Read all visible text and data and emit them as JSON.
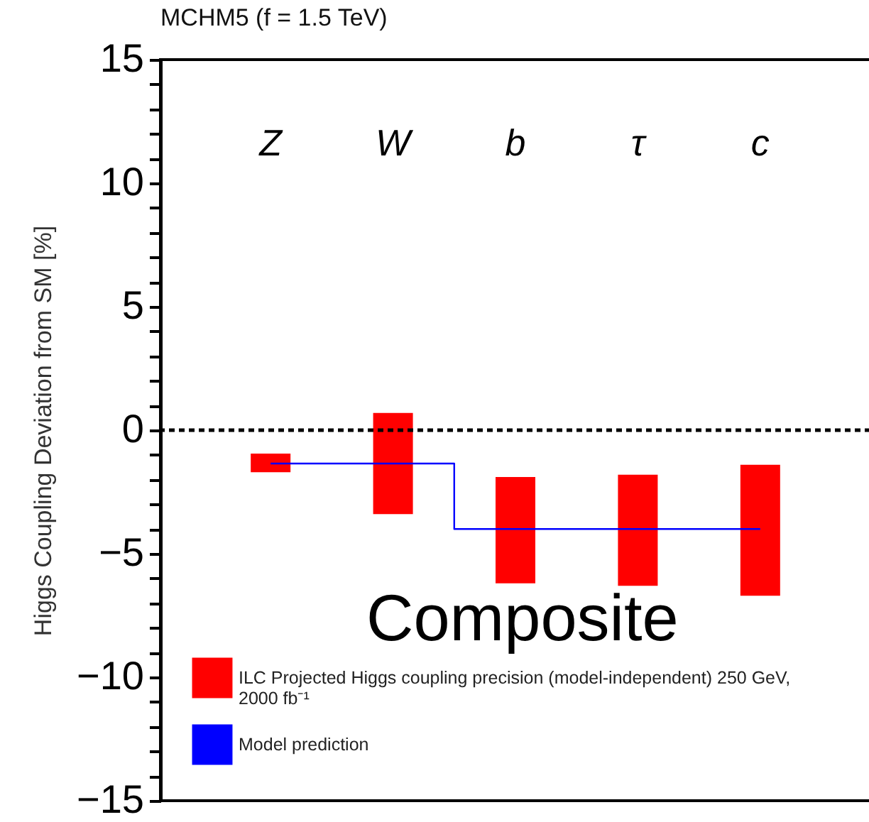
{
  "chart_data": {
    "type": "bar",
    "title": "MCHM5 (f = 1.5 TeV)",
    "ylabel": "Higgs Coupling Deviation from SM [%]",
    "categories": [
      "Z",
      "W",
      "b",
      "τ",
      "c"
    ],
    "series": [
      {
        "name": "ILC Projected Higgs coupling precision (model-independent) 250 GeV, 2000 fb⁻¹",
        "color": "#ff0000",
        "base": [
          -1.7,
          -3.4,
          -6.2,
          -6.3,
          -6.7
        ],
        "values": [
          0.75,
          4.1,
          4.3,
          4.5,
          5.3
        ]
      },
      {
        "name": "Model prediction",
        "type": "step",
        "color": "#0000ff",
        "values": [
          -1.35,
          -1.35,
          -4,
          -4,
          -4
        ]
      }
    ],
    "ylim": [
      -15,
      15
    ],
    "yticks": [
      -15,
      {
        "value": -14,
        "label": null
      },
      {
        "value": -13,
        "label": null
      },
      {
        "value": -12,
        "label": null
      },
      {
        "value": -11,
        "label": null
      },
      -10,
      {
        "value": -9,
        "label": null
      },
      {
        "value": -8,
        "label": null
      },
      {
        "value": -7,
        "label": null
      },
      {
        "value": -6,
        "label": null
      },
      -5,
      {
        "value": -4,
        "label": null
      },
      {
        "value": -3,
        "label": null
      },
      {
        "value": -2,
        "label": null
      },
      {
        "value": -1,
        "label": null
      },
      0,
      {
        "value": 1,
        "label": null
      },
      {
        "value": 2,
        "label": null
      },
      {
        "value": 3,
        "label": null
      },
      {
        "value": 4,
        "label": null
      },
      5,
      {
        "value": 6,
        "label": null
      },
      {
        "value": 7,
        "label": null
      },
      {
        "value": 8,
        "label": null
      },
      {
        "value": 9,
        "label": null
      },
      10,
      {
        "value": 11,
        "label": null
      },
      {
        "value": 12,
        "label": null
      },
      {
        "value": 13,
        "label": null
      },
      {
        "value": 14,
        "label": null
      },
      15
    ],
    "ref_lines": [
      {
        "axis": "y",
        "value": 0,
        "color": "#000000",
        "line_style": "dashed"
      }
    ],
    "annotations": [
      "Composite"
    ],
    "legend": "bottom left"
  }
}
